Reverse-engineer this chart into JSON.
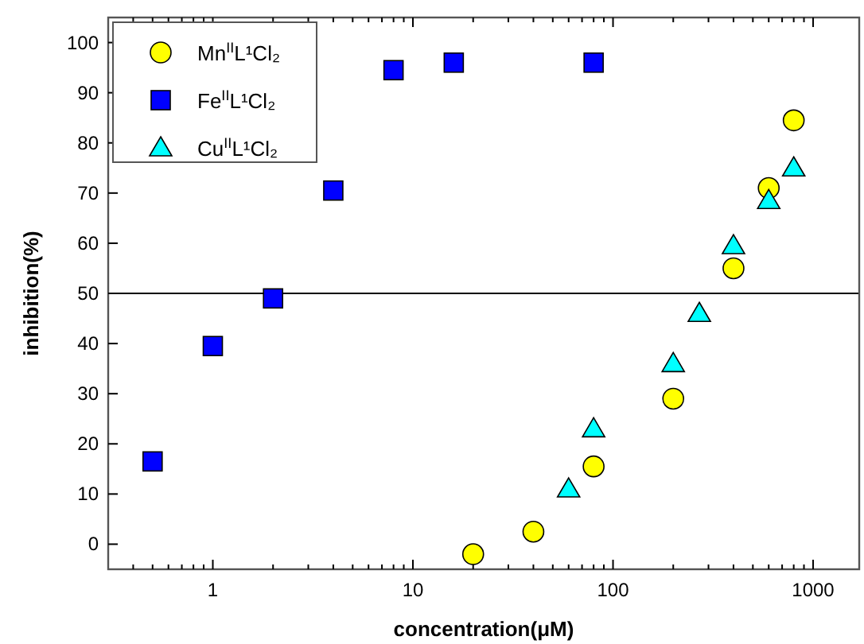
{
  "chart_data": {
    "type": "scatter",
    "xlabel": "concentration(μM)",
    "ylabel": "inhibition(%)",
    "log": "x",
    "xlim": [
      0.3,
      1700
    ],
    "ylim": [
      -5,
      105
    ],
    "xticks": [
      {
        "value": 0.4,
        "label": null
      },
      {
        "value": 0.5,
        "label": null
      },
      {
        "value": 0.6,
        "label": null
      },
      {
        "value": 0.7,
        "label": null
      },
      {
        "value": 0.8,
        "label": null
      },
      {
        "value": 0.9,
        "label": null
      },
      1,
      {
        "value": 2,
        "label": null
      },
      {
        "value": 3,
        "label": null
      },
      {
        "value": 4,
        "label": null
      },
      {
        "value": 5,
        "label": null
      },
      {
        "value": 6,
        "label": null
      },
      {
        "value": 7,
        "label": null
      },
      {
        "value": 8,
        "label": null
      },
      {
        "value": 9,
        "label": null
      },
      10,
      {
        "value": 20,
        "label": null
      },
      {
        "value": 30,
        "label": null
      },
      {
        "value": 40,
        "label": null
      },
      {
        "value": 50,
        "label": null
      },
      {
        "value": 60,
        "label": null
      },
      {
        "value": 70,
        "label": null
      },
      {
        "value": 80,
        "label": null
      },
      {
        "value": 90,
        "label": null
      },
      100,
      {
        "value": 200,
        "label": null
      },
      {
        "value": 300,
        "label": null
      },
      {
        "value": 400,
        "label": null
      },
      {
        "value": 500,
        "label": null
      },
      {
        "value": 600,
        "label": null
      },
      {
        "value": 700,
        "label": null
      },
      {
        "value": 800,
        "label": null
      },
      {
        "value": 900,
        "label": null
      },
      1000
    ],
    "yticks": [
      0,
      10,
      20,
      30,
      40,
      50,
      60,
      70,
      80,
      90,
      100
    ],
    "grid": false,
    "legend": "top left",
    "ref_lines": [
      {
        "axis": "y",
        "value": 50,
        "color": "#000000"
      }
    ],
    "series": [
      {
        "name": "Mn$^{II}$L¹Cl₂",
        "color": "#ffff00",
        "marker": "circle",
        "x": [
          20,
          40,
          80,
          200,
          400,
          600,
          800
        ],
        "values": [
          -2,
          2.5,
          15.5,
          29,
          55,
          71,
          84.5
        ]
      },
      {
        "name": "Fe$^{II}$L¹Cl₂",
        "color": "#0000ff",
        "marker": "square",
        "x": [
          0.5,
          1,
          2,
          4,
          8,
          16,
          80
        ],
        "values": [
          16.5,
          39.5,
          49,
          70.5,
          94.5,
          96,
          96
        ]
      },
      {
        "name": "Cu$^{II}$L¹Cl₂",
        "color": "#00ffff",
        "marker": "triangle",
        "x": [
          60,
          80,
          200,
          270,
          400,
          600,
          800
        ],
        "values": [
          11,
          23,
          36,
          46,
          59.5,
          68.5,
          75
        ]
      }
    ]
  }
}
